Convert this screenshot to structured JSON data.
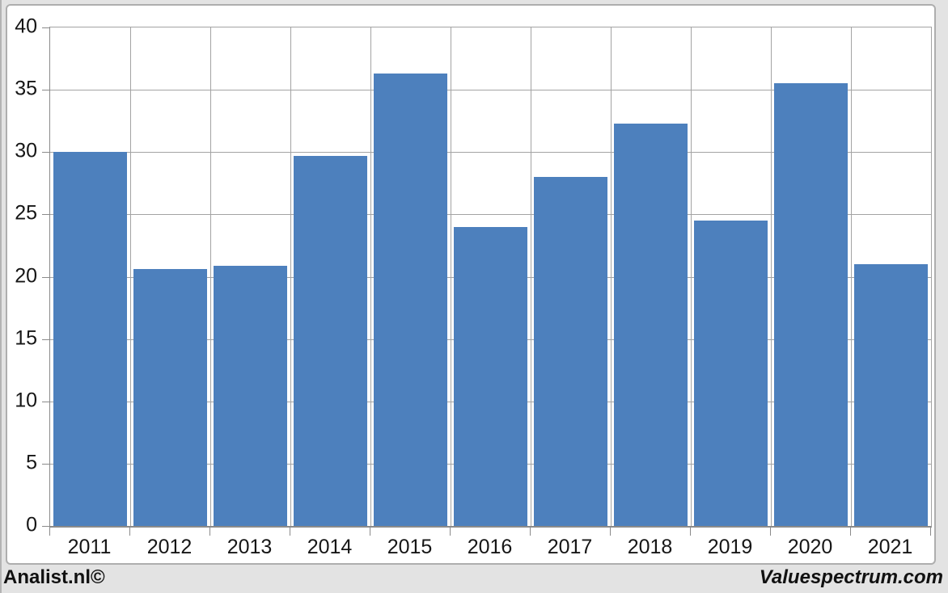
{
  "page": {
    "background_color": "#e3e3e3",
    "panel_background_color": "#ffffff",
    "panel_border_color": "#aeaeae"
  },
  "footer": {
    "left_text": "Analist.nl©",
    "right_text": "Valuespectrum.com"
  },
  "chart_data": {
    "type": "bar",
    "title": "",
    "xlabel": "",
    "ylabel": "",
    "categories": [
      "2011",
      "2012",
      "2013",
      "2014",
      "2015",
      "2016",
      "2017",
      "2018",
      "2019",
      "2020",
      "2021"
    ],
    "values": [
      30.0,
      20.6,
      20.9,
      29.7,
      36.3,
      24.0,
      28.0,
      32.3,
      24.5,
      35.5,
      21.0
    ],
    "ylim": [
      0,
      40
    ],
    "yticks": [
      0,
      5,
      10,
      15,
      20,
      25,
      30,
      35,
      40
    ],
    "grid": {
      "horizontal": true,
      "vertical": true
    },
    "legend": "none",
    "bar_color": "#4d80bd",
    "gridline_color": "#a3a3a3",
    "axis_color": "#8a8a8a",
    "label_color": "#161616"
  }
}
